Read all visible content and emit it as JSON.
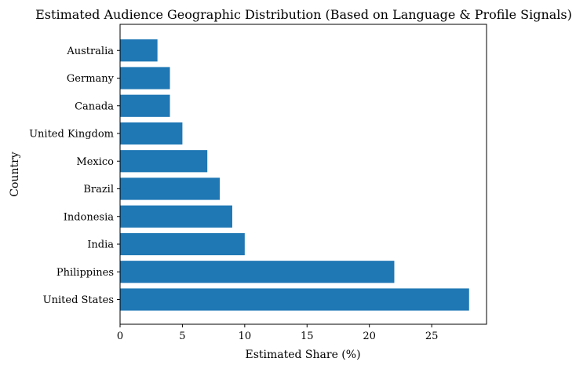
{
  "chart_data": {
    "type": "bar",
    "orientation": "horizontal",
    "title": "Estimated Audience Geographic Distribution (Based on Language & Profile Signals)",
    "xlabel": "Estimated Share (%)",
    "ylabel": "Country",
    "categories": [
      "United States",
      "Philippines",
      "India",
      "Indonesia",
      "Brazil",
      "Mexico",
      "United Kingdom",
      "Canada",
      "Germany",
      "Australia"
    ],
    "values": [
      28,
      22,
      10,
      9,
      8,
      7,
      5,
      4,
      4,
      3
    ],
    "xticks": [
      0,
      5,
      10,
      15,
      20,
      25
    ],
    "xlim": [
      0,
      29.4
    ],
    "grid": false,
    "bar_color": "#1f77b4"
  }
}
